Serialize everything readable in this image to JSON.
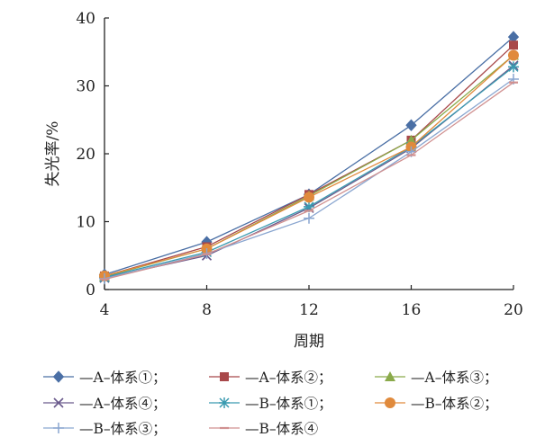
{
  "chart_data": {
    "type": "line",
    "xlabel": "周期",
    "ylabel": "失光率/%",
    "x": [
      4,
      8,
      12,
      16,
      20
    ],
    "xticks": [
      "4",
      "8",
      "12",
      "16",
      "20"
    ],
    "yticks": [
      "0",
      "10",
      "20",
      "30",
      "40"
    ],
    "xlim": [
      4,
      20
    ],
    "ylim": [
      0,
      40
    ],
    "grid": false,
    "legend_position": "bottom",
    "series": [
      {
        "name": "—A–体系①；",
        "marker": "diamond",
        "color": "#4a6fa5",
        "values": [
          2.2,
          7.0,
          14.0,
          24.2,
          37.2
        ]
      },
      {
        "name": "—A–体系②；",
        "marker": "square",
        "color": "#a8484a",
        "values": [
          2.0,
          6.3,
          14.0,
          22.0,
          36.0
        ]
      },
      {
        "name": "—A–体系③；",
        "marker": "triangle",
        "color": "#8aaa4a",
        "values": [
          1.9,
          6.0,
          13.8,
          22.0,
          34.5
        ]
      },
      {
        "name": "—A–体系④；",
        "marker": "x",
        "color": "#6a5a8c",
        "values": [
          1.7,
          5.0,
          12.0,
          20.8,
          33.0
        ]
      },
      {
        "name": "—B–体系①；",
        "marker": "asterisk",
        "color": "#3a9ab0",
        "values": [
          1.8,
          5.5,
          12.2,
          21.0,
          32.8
        ]
      },
      {
        "name": "—B–体系②；",
        "marker": "circle",
        "color": "#e08a3c",
        "values": [
          2.0,
          6.0,
          13.6,
          21.0,
          34.5
        ]
      },
      {
        "name": "—B–体系③；",
        "marker": "plus",
        "color": "#8aa6d0",
        "values": [
          1.6,
          5.3,
          10.5,
          20.3,
          31.0
        ]
      },
      {
        "name": "—B–体系④",
        "marker": "dash",
        "color": "#d09090",
        "values": [
          1.5,
          5.2,
          11.6,
          19.8,
          30.5
        ]
      }
    ]
  }
}
